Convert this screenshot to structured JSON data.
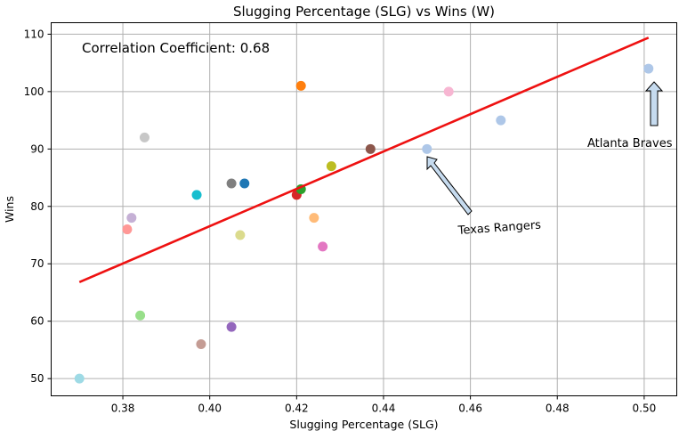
{
  "chart_data": {
    "type": "scatter",
    "title": "Slugging Percentage (SLG) vs Wins (W)",
    "xlabel": "Slugging Percentage (SLG)",
    "ylabel": "Wins",
    "xlim": [
      0.3635,
      0.5075
    ],
    "ylim": [
      47,
      112
    ],
    "x_ticks": [
      0.38,
      0.4,
      0.42,
      0.44,
      0.46,
      0.48,
      0.5
    ],
    "x_tick_labels": [
      "0.38",
      "0.40",
      "0.42",
      "0.44",
      "0.46",
      "0.48",
      "0.50"
    ],
    "y_ticks": [
      50,
      60,
      70,
      80,
      90,
      100,
      110
    ],
    "y_tick_labels": [
      "50",
      "60",
      "70",
      "80",
      "90",
      "100",
      "110"
    ],
    "grid": true,
    "points": [
      {
        "x": 0.37,
        "y": 50,
        "color": "#9edae5"
      },
      {
        "x": 0.381,
        "y": 76,
        "color": "#ff9896"
      },
      {
        "x": 0.382,
        "y": 78,
        "color": "#c5b0d5"
      },
      {
        "x": 0.384,
        "y": 61,
        "color": "#98df8a"
      },
      {
        "x": 0.385,
        "y": 92,
        "color": "#c7c7c7"
      },
      {
        "x": 0.397,
        "y": 82,
        "color": "#17becf"
      },
      {
        "x": 0.398,
        "y": 56,
        "color": "#c49c94"
      },
      {
        "x": 0.405,
        "y": 84,
        "color": "#7f7f7f"
      },
      {
        "x": 0.405,
        "y": 59,
        "color": "#9467bd"
      },
      {
        "x": 0.407,
        "y": 75,
        "color": "#dbdb8d"
      },
      {
        "x": 0.408,
        "y": 84,
        "color": "#1f77b4"
      },
      {
        "x": 0.42,
        "y": 82,
        "color": "#d62728"
      },
      {
        "x": 0.421,
        "y": 83,
        "color": "#2ca02c"
      },
      {
        "x": 0.421,
        "y": 101,
        "color": "#ff7f0e"
      },
      {
        "x": 0.424,
        "y": 78,
        "color": "#ffbb78"
      },
      {
        "x": 0.426,
        "y": 73,
        "color": "#e377c2"
      },
      {
        "x": 0.428,
        "y": 87,
        "color": "#bcbd22"
      },
      {
        "x": 0.437,
        "y": 90,
        "color": "#8c564b"
      },
      {
        "x": 0.45,
        "y": 90,
        "color": "#aec7e8"
      },
      {
        "x": 0.455,
        "y": 100,
        "color": "#f7b6d2"
      },
      {
        "x": 0.467,
        "y": 95,
        "color": "#aec7e8"
      },
      {
        "x": 0.501,
        "y": 104,
        "color": "#aec7e8"
      }
    ],
    "regression_line": {
      "x": [
        0.37,
        0.501
      ],
      "y": [
        66.8,
        109.4
      ],
      "color": "#ee1111"
    },
    "correlation_text": "Correlation Coefficient: 0.68",
    "annotations": [
      {
        "text": "Texas Rangers",
        "point_x": 0.45,
        "point_y": 90
      },
      {
        "text": "Atlanta Braves",
        "point_x": 0.501,
        "point_y": 104
      }
    ],
    "arrow_fill": "#c6dbef"
  }
}
